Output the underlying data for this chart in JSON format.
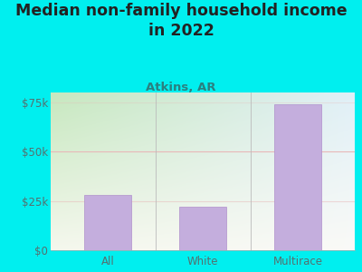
{
  "title": "Median non-family household income\nin 2022",
  "subtitle": "Atkins, AR",
  "categories": [
    "All",
    "White",
    "Multirace"
  ],
  "values": [
    28000,
    22000,
    74000
  ],
  "bar_color": "#c4aedd",
  "bar_edge_color": "#b090cc",
  "bg_outer_color": "#00EFEF",
  "plot_bg_top_left": "#c8e8c0",
  "plot_bg_top_right": "#e0eff8",
  "plot_bg_bottom": "#f5f5ee",
  "grid_line_color": "#e8b8b8",
  "title_color": "#222222",
  "subtitle_color": "#2a8080",
  "tick_color": "#557070",
  "ylim": [
    0,
    80000
  ],
  "yticks": [
    0,
    25000,
    50000,
    75000
  ],
  "ytick_labels": [
    "$0",
    "$25k",
    "$50k",
    "$75k"
  ],
  "title_fontsize": 12.5,
  "subtitle_fontsize": 9.5,
  "tick_fontsize": 8.5
}
